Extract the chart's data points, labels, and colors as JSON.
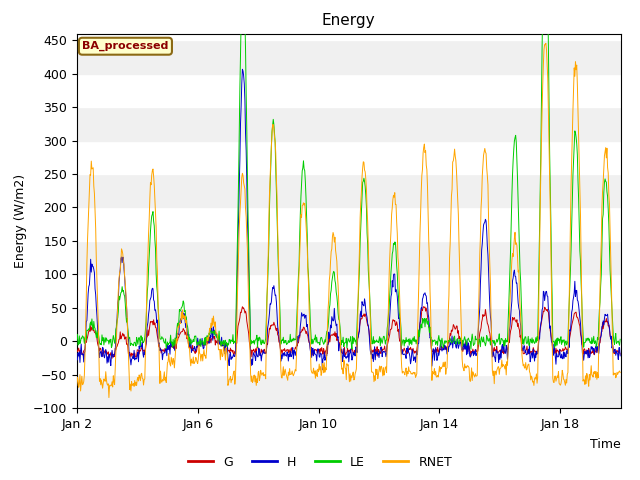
{
  "title": "Energy",
  "xlabel": "Time",
  "ylabel": "Energy (W/m2)",
  "ylim": [
    -100,
    460
  ],
  "background_color": "#ffffff",
  "plot_bg_color": "#f0f0f0",
  "legend_label": "BA_processed",
  "legend_bg": "#ffffcc",
  "legend_edge": "#8b6914",
  "series": [
    "G",
    "H",
    "LE",
    "RNET"
  ],
  "colors": {
    "G": "#cc0000",
    "H": "#0000cc",
    "LE": "#00cc00",
    "RNET": "#ffa500"
  },
  "xtick_labels": [
    "Jan 2",
    "Jan 6",
    "Jan 10",
    "Jan 14",
    "Jan 18"
  ],
  "n_days": 18,
  "pts_per_day": 48,
  "gray_band_color": "#d8d8d8",
  "white_band_color": "#f0f0f0"
}
